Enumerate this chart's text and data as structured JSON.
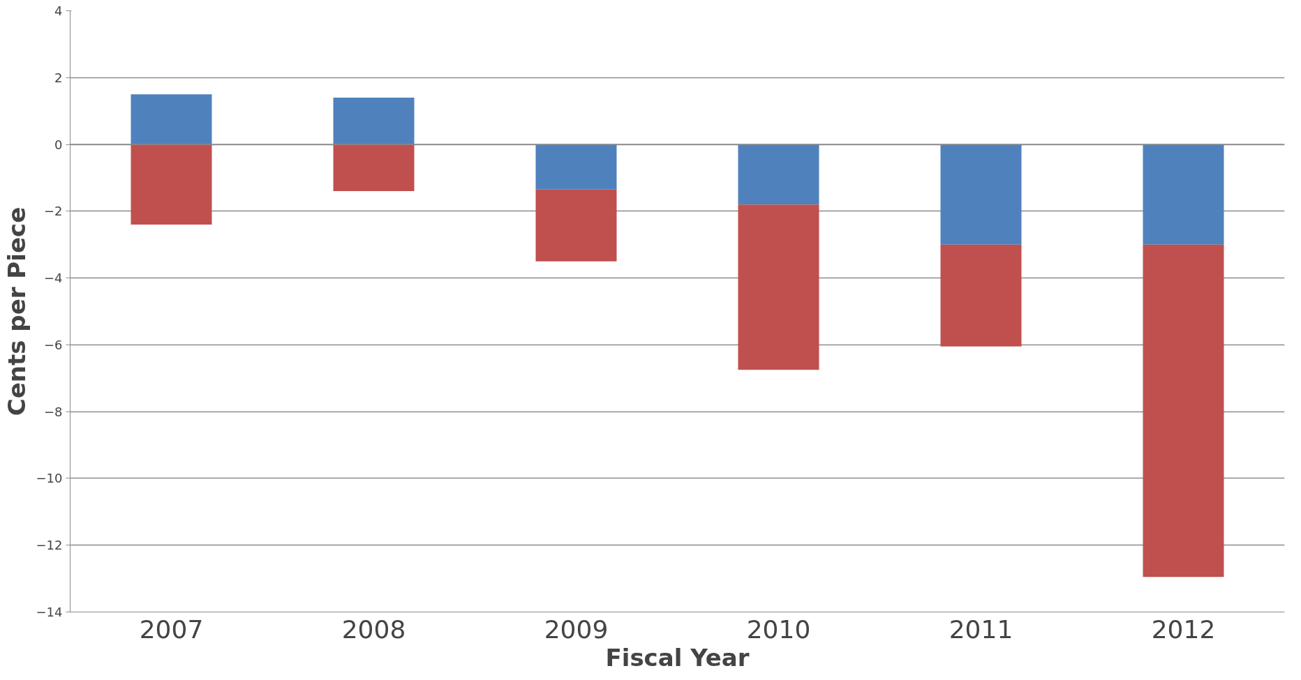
{
  "chart_data": {
    "type": "bar",
    "stacked": true,
    "xlabel": "Fiscal Year",
    "ylabel": "Cents per Piece",
    "categories": [
      "2007",
      "2008",
      "2009",
      "2010",
      "2011",
      "2012"
    ],
    "series": [
      {
        "color": "#4f81bd",
        "values": [
          1.5,
          1.4,
          -1.35,
          -1.8,
          -3.0,
          -3.0
        ]
      },
      {
        "color": "#c0504d",
        "values": [
          -2.4,
          -1.4,
          -2.15,
          -4.95,
          -3.05,
          -9.95
        ]
      }
    ],
    "ylim": [
      -14,
      4
    ],
    "yticks": [
      -14,
      -12,
      -10,
      -8,
      -6,
      -4,
      -2,
      0,
      2,
      4
    ],
    "grid": "y"
  }
}
